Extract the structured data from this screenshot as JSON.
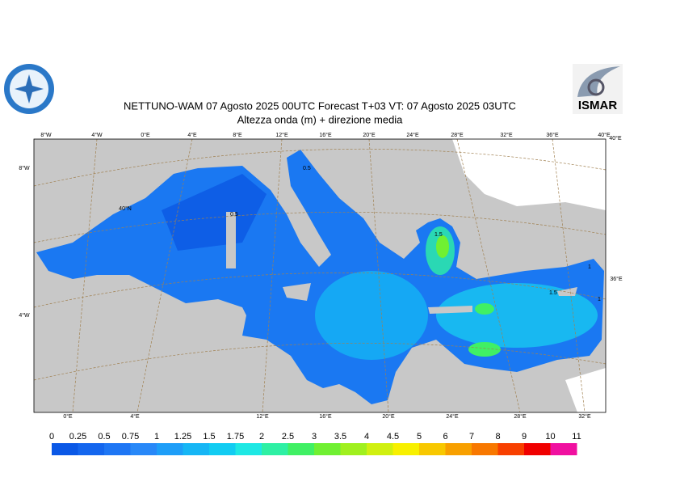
{
  "header": {
    "title": "NETTUNO-WAM  07   Agosto  2025 00UTC Forecast T+03 VT: 07   Agosto  2025 03UTC",
    "subtitle": "Altezza onda (m) + direzione media"
  },
  "logo": {
    "text": "ISMAR"
  },
  "graticule": {
    "top": [
      "8°W",
      "4°W",
      "0°E",
      "4°E",
      "8°E",
      "12°E",
      "16°E",
      "20°E",
      "24°E",
      "28°E",
      "32°E",
      "36°E",
      "40°E"
    ],
    "bottom": [
      "0°E",
      "4°E",
      "12°E",
      "16°E",
      "20°E",
      "24°E",
      "28°E",
      "32°E"
    ],
    "left": [
      "8°W",
      "40°N",
      "4°W"
    ],
    "right": [
      "40°E",
      "36°E"
    ]
  },
  "map": {
    "contour_labels": [
      "0.5",
      "0.5",
      "1.5",
      "1",
      "1.5",
      "1"
    ]
  },
  "colorbar": {
    "labels": [
      "0",
      "0.25",
      "0.5",
      "0.75",
      "1",
      "1.25",
      "1.5",
      "1.75",
      "2",
      "2.5",
      "3",
      "3.5",
      "4",
      "4.5",
      "5",
      "6",
      "7",
      "8",
      "9",
      "10",
      "11"
    ],
    "colors": [
      "#0a58e6",
      "#1466ee",
      "#1e76f4",
      "#2888f8",
      "#1e9ef8",
      "#16b6f5",
      "#12ccf2",
      "#1ee8e4",
      "#2ef0a4",
      "#40f064",
      "#70f032",
      "#a0f01e",
      "#d0f010",
      "#f8f000",
      "#f8c800",
      "#f8a000",
      "#f87800",
      "#f84000",
      "#f00000",
      "#f010a0"
    ]
  }
}
